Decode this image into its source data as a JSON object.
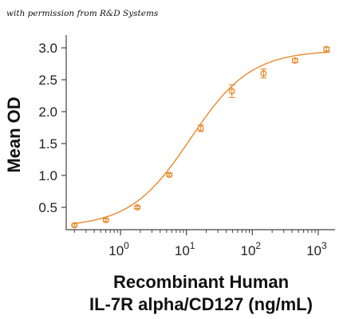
{
  "attribution": "with permission from R&D Systems",
  "colors": {
    "series": "#E8892B",
    "axis": "#444444",
    "text": "#111111"
  },
  "chart_data": {
    "type": "scatter",
    "xlabel_line1": "Recombinant Human",
    "xlabel_line2": "IL-7R alpha/CD127 (ng/mL)",
    "ylabel": "Mean OD",
    "xscale": "log",
    "xlim": [
      0.15,
      1800
    ],
    "ylim": [
      0.15,
      3.2
    ],
    "yticks": [
      0.5,
      1.0,
      1.5,
      2.0,
      2.5,
      3.0
    ],
    "ytick_labels": [
      "0.5",
      "1.0",
      "1.5",
      "2.0",
      "2.5",
      "3.0"
    ],
    "xticks": [
      1,
      10,
      100,
      1000
    ],
    "xtick_base": "10",
    "xtick_exponents": [
      "0",
      "1",
      "2",
      "3"
    ],
    "grid": false,
    "legend": "none",
    "points": [
      {
        "x": 0.2,
        "y": 0.22,
        "err": 0.02
      },
      {
        "x": 0.6,
        "y": 0.3,
        "err": 0.02
      },
      {
        "x": 1.8,
        "y": 0.5,
        "err": 0.02
      },
      {
        "x": 5.5,
        "y": 1.01,
        "err": 0.02
      },
      {
        "x": 16.5,
        "y": 1.74,
        "err": 0.05
      },
      {
        "x": 49,
        "y": 2.32,
        "err": 0.1
      },
      {
        "x": 148,
        "y": 2.6,
        "err": 0.07
      },
      {
        "x": 444,
        "y": 2.8,
        "err": 0.03
      },
      {
        "x": 1333,
        "y": 2.98,
        "err": 0.03
      }
    ],
    "fit": {
      "model": "4PL",
      "bottom": 0.19,
      "top": 2.96,
      "ec50": 11.5,
      "hill": 0.95
    }
  }
}
